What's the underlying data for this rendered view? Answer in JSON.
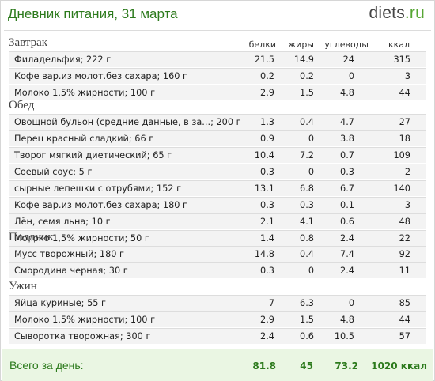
{
  "header": {
    "title": "Дневник питания, 31 марта",
    "logo_brand": "diets",
    "logo_tld": ".ru"
  },
  "columns": {
    "protein": "белки",
    "fat": "жиры",
    "carbs": "углеводы",
    "kcal": "ккал"
  },
  "meals": [
    {
      "title": "Завтрак",
      "items": [
        {
          "name": "Филадельфия; 222 г",
          "protein": "21.5",
          "fat": "14.9",
          "carbs": "24",
          "kcal": "315"
        },
        {
          "name": "Кофе вар.из молот.без сахара; 160 г",
          "protein": "0.2",
          "fat": "0.2",
          "carbs": "0",
          "kcal": "3"
        },
        {
          "name": "Молоко 1,5% жирности; 100 г",
          "protein": "2.9",
          "fat": "1.5",
          "carbs": "4.8",
          "kcal": "44"
        }
      ]
    },
    {
      "title": "Обед",
      "items": [
        {
          "name": "Овощной бульон (средние данные, в за...; 200 г",
          "protein": "1.3",
          "fat": "0.4",
          "carbs": "4.7",
          "kcal": "27"
        },
        {
          "name": "Перец красный сладкий; 66 г",
          "protein": "0.9",
          "fat": "0",
          "carbs": "3.8",
          "kcal": "18"
        },
        {
          "name": "Творог мягкий диетический; 65 г",
          "protein": "10.4",
          "fat": "7.2",
          "carbs": "0.7",
          "kcal": "109"
        },
        {
          "name": "Соевый соус; 5 г",
          "protein": "0.3",
          "fat": "0",
          "carbs": "0.3",
          "kcal": "2"
        },
        {
          "name": "сырные лепешки с отрубями; 152 г",
          "protein": "13.1",
          "fat": "6.8",
          "carbs": "6.7",
          "kcal": "140"
        },
        {
          "name": "Кофе вар.из молот.без сахара; 180 г",
          "protein": "0.3",
          "fat": "0.3",
          "carbs": "0.1",
          "kcal": "3"
        },
        {
          "name": "Лён, семя льна; 10 г",
          "protein": "2.1",
          "fat": "4.1",
          "carbs": "0.6",
          "kcal": "48"
        },
        {
          "name": "Молоко 1,5% жирности; 50 г",
          "protein": "1.4",
          "fat": "0.8",
          "carbs": "2.4",
          "kcal": "22"
        }
      ]
    },
    {
      "title": "Полдник",
      "items": [
        {
          "name": "Мусс творожный; 180 г",
          "protein": "14.8",
          "fat": "0.4",
          "carbs": "7.4",
          "kcal": "92"
        },
        {
          "name": "Смородина черная; 30 г",
          "protein": "0.3",
          "fat": "0",
          "carbs": "2.4",
          "kcal": "11"
        }
      ]
    },
    {
      "title": "Ужин",
      "items": [
        {
          "name": "Яйца куриные; 55 г",
          "protein": "7",
          "fat": "6.3",
          "carbs": "0",
          "kcal": "85"
        },
        {
          "name": "Молоко 1,5% жирности; 100 г",
          "protein": "2.9",
          "fat": "1.5",
          "carbs": "4.8",
          "kcal": "44"
        },
        {
          "name": "Сыворотка творожная; 300 г",
          "protein": "2.4",
          "fat": "0.6",
          "carbs": "10.5",
          "kcal": "57"
        }
      ]
    }
  ],
  "totals": {
    "label": "Всего за день:",
    "protein": "81.8",
    "fat": "45",
    "carbs": "73.2",
    "kcal": "1020 ккал"
  }
}
